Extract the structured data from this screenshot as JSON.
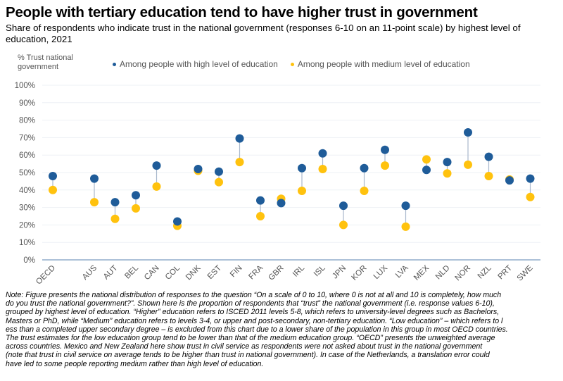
{
  "title": "People with tertiary education tend to have higher trust in government",
  "subtitle": "Share of respondents who indicate trust in the national government (responses 6-10 on an 11-point scale) by highest level of education, 2021",
  "chart_data": {
    "type": "scatter",
    "ylabel": "% Trust national government",
    "ylim": [
      0,
      100
    ],
    "yticks": [
      "0%",
      "10%",
      "20%",
      "30%",
      "40%",
      "50%",
      "60%",
      "70%",
      "80%",
      "90%",
      "100%"
    ],
    "grid": true,
    "legend_position": "top",
    "categories": [
      "OECD",
      "AUS",
      "AUT",
      "BEL",
      "CAN",
      "COL",
      "DNK",
      "EST",
      "FIN",
      "FRA",
      "GBR",
      "IRL",
      "ISL",
      "JPN",
      "KOR",
      "LUX",
      "LVA",
      "MEX",
      "NLD",
      "NOR",
      "NZL",
      "PRT",
      "SWE"
    ],
    "series": [
      {
        "name": "Among people with high level of education",
        "color": "#1F5C99",
        "values": [
          48,
          46.5,
          33,
          37,
          54,
          22,
          52,
          50.5,
          69.5,
          34,
          32.5,
          52.5,
          61,
          31,
          52.5,
          63,
          31,
          51.5,
          56,
          73,
          59,
          45.5,
          46.5
        ]
      },
      {
        "name": "Among people with medium level of education",
        "color": "#FFC20E",
        "values": [
          40,
          33,
          23.5,
          29.5,
          42,
          19.5,
          51,
          44.5,
          56,
          25,
          35,
          39.5,
          52,
          20,
          39.5,
          54,
          19,
          57.5,
          49.5,
          54.5,
          48,
          46,
          36
        ]
      }
    ]
  },
  "note": [
    "Note: Figure presents the national distribution of responses to the question “On a scale of 0 to 10, where 0 is not at all and 10 is completely, how much",
    "do you trust the national government?”. Shown here is the proportion of respondents that “trust” the national government (i.e. response values 6-10),",
    "grouped by highest level of education. “Higher” education refers to ISCED 2011 levels 5-8, which refers to university-level degrees such as Bachelors,",
    "Masters or PhD, while “Medium” education refers to levels 3-4, or upper and post-secondary, non-tertiary education. “Low education” – which refers to l",
    "ess than a completed upper secondary degree – is excluded from this chart due to a lower share of the population in this group in most OECD countries.",
    "The trust estimates for the low education group tend to be lower than that of the medium education group. “OECD” presents the unweighted average",
    "across countries. Mexico and New Zealand here show trust in civil service as respondents were not asked about trust in the national government",
    "(note that trust in civil service on average tends to be higher than trust in national government). In case of the Netherlands, a translation error could",
    "have led to some people reporting medium rather than high level of education."
  ]
}
